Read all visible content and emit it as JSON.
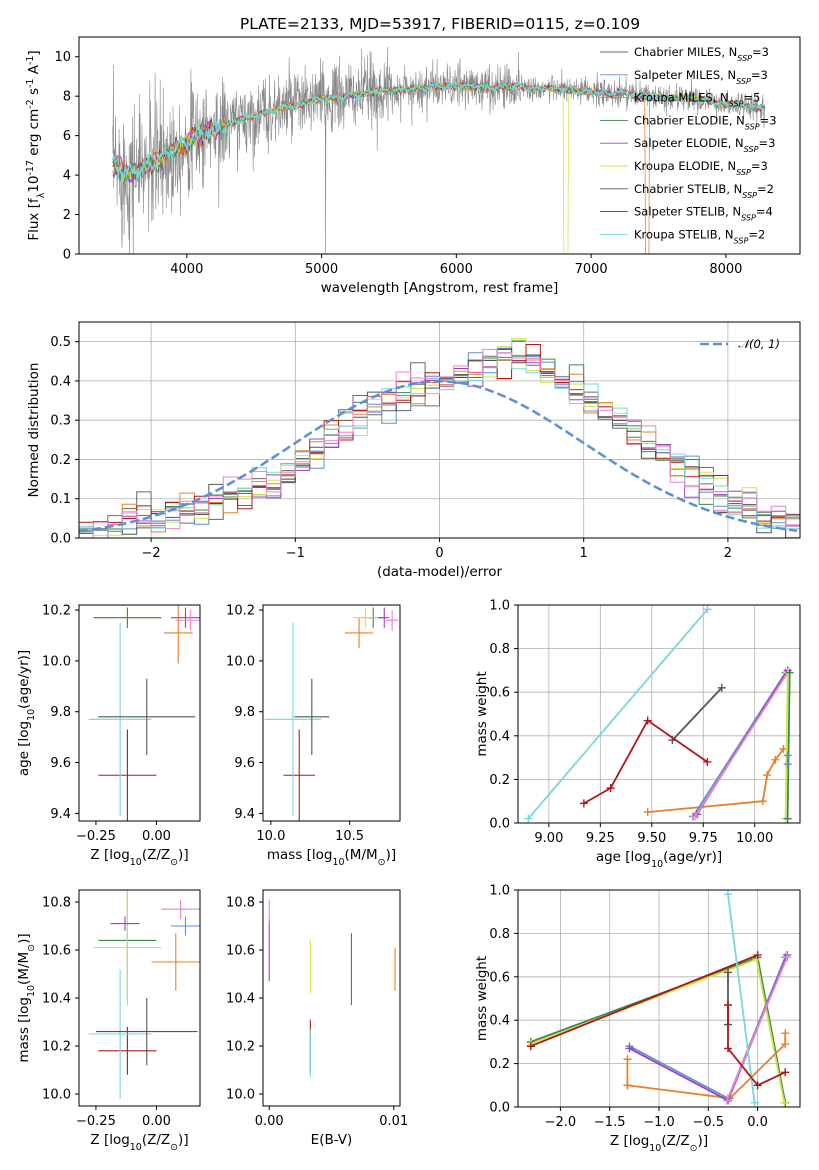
{
  "colors": {
    "Chabrier MILES": "#6a6a6a",
    "Salpeter MILES": "#5b8fd8",
    "Kroupa MILES": "#e8802a",
    "Chabrier ELODIE": "#3a8a4a",
    "Salpeter ELODIE": "#9b40c0",
    "Kroupa ELODIE": "#d6e050",
    "Chabrier STELIB": "#555555",
    "Salpeter STELIB": "#b01818",
    "Kroupa STELIB": "#78d6dc",
    "normal_pdf": "#5b8fd8",
    "pink": "#e884c8",
    "grey_spec": "#8a8a8a"
  },
  "chart_data": [
    {
      "panel": "spectrum",
      "type": "line",
      "title": "PLATE=2133, MJD=53917, FIBERID=0115, z=0.109",
      "xlabel": "wavelength [Angstrom, rest frame]",
      "ylabel": "Flux [f$_\\lambda$10$^{-17}$ erg cm$^{-2}$ s$^{-1}$ A$^{-1}$]",
      "xlim": [
        3200,
        8550
      ],
      "ylim": [
        0,
        11
      ],
      "xticks": [
        "4000",
        "5000",
        "6000",
        "7000",
        "8000"
      ],
      "yticks": [
        "0",
        "2",
        "4",
        "6",
        "8",
        "10"
      ],
      "grid": false,
      "legend_position": "right",
      "legend": [
        {
          "label": "Chabrier MILES, N",
          "sub": "SSP",
          "suffix": "=3",
          "color": "Chabrier MILES"
        },
        {
          "label": "Salpeter MILES, N",
          "sub": "SSP",
          "suffix": "=3",
          "color": "Salpeter MILES"
        },
        {
          "label": "Kroupa MILES, N",
          "sub": "SSP",
          "suffix": "=5",
          "color": "Kroupa MILES"
        },
        {
          "label": "Chabrier ELODIE, N",
          "sub": "SSP",
          "suffix": "=3",
          "color": "Chabrier ELODIE"
        },
        {
          "label": "Salpeter ELODIE, N",
          "sub": "SSP",
          "suffix": "=3",
          "color": "Salpeter ELODIE"
        },
        {
          "label": "Kroupa ELODIE, N",
          "sub": "SSP",
          "suffix": "=3",
          "color": "Kroupa ELODIE"
        },
        {
          "label": "Chabrier STELIB, N",
          "sub": "SSP",
          "suffix": "=2",
          "color": "Chabrier STELIB"
        },
        {
          "label": "Salpeter STELIB, N",
          "sub": "SSP",
          "suffix": "=4",
          "color": "Salpeter STELIB"
        },
        {
          "label": "Kroupa STELIB, N",
          "sub": "SSP",
          "suffix": "=2",
          "color": "Kroupa STELIB"
        }
      ],
      "continuum": [
        [
          3450,
          4.5
        ],
        [
          3550,
          4.1
        ],
        [
          3650,
          4.3
        ],
        [
          3750,
          4.6
        ],
        [
          3850,
          5.0
        ],
        [
          3950,
          5.5
        ],
        [
          4050,
          5.9
        ],
        [
          4150,
          6.2
        ],
        [
          4250,
          6.4
        ],
        [
          4350,
          6.7
        ],
        [
          4450,
          6.9
        ],
        [
          4550,
          7.1
        ],
        [
          4650,
          7.3
        ],
        [
          4750,
          7.5
        ],
        [
          4850,
          7.6
        ],
        [
          4950,
          7.8
        ],
        [
          5050,
          7.9
        ],
        [
          5150,
          7.9
        ],
        [
          5250,
          8.1
        ],
        [
          5350,
          8.2
        ],
        [
          5450,
          8.3
        ],
        [
          5550,
          8.3
        ],
        [
          5650,
          8.4
        ],
        [
          5750,
          8.4
        ],
        [
          5850,
          8.5
        ],
        [
          5950,
          8.5
        ],
        [
          6050,
          8.5
        ],
        [
          6150,
          8.5
        ],
        [
          6250,
          8.4
        ],
        [
          6350,
          8.5
        ],
        [
          6450,
          8.5
        ],
        [
          6550,
          8.4
        ],
        [
          6650,
          8.4
        ],
        [
          6750,
          8.4
        ],
        [
          6850,
          8.3
        ],
        [
          6950,
          8.2
        ],
        [
          7050,
          8.2
        ],
        [
          7150,
          8.1
        ],
        [
          7250,
          8.2
        ],
        [
          7350,
          8.0
        ],
        [
          7450,
          8.0
        ],
        [
          7550,
          7.9
        ],
        [
          7650,
          7.9
        ],
        [
          7750,
          7.9
        ],
        [
          7850,
          7.8
        ],
        [
          7950,
          7.6
        ],
        [
          8050,
          7.6
        ],
        [
          8150,
          7.5
        ],
        [
          8250,
          7.4
        ]
      ]
    },
    {
      "panel": "residual_hist",
      "type": "step",
      "xlabel": "(data-model)/error",
      "ylabel": "Normed distribution",
      "xlim": [
        -2.5,
        2.5
      ],
      "ylim": [
        0,
        0.55
      ],
      "xticks": [
        "−2",
        "−1",
        "0",
        "1",
        "2"
      ],
      "yticks": [
        "0.0",
        "0.1",
        "0.2",
        "0.3",
        "0.4",
        "0.5"
      ],
      "grid": true,
      "legend": "𝒩(0, 1)",
      "bin_edges_start": -2.5,
      "bin_width": 0.1,
      "reference_counts": [
        0.02,
        0.02,
        0.03,
        0.04,
        0.05,
        0.05,
        0.06,
        0.07,
        0.08,
        0.1,
        0.11,
        0.12,
        0.13,
        0.14,
        0.16,
        0.19,
        0.22,
        0.26,
        0.28,
        0.31,
        0.33,
        0.35,
        0.37,
        0.38,
        0.39,
        0.4,
        0.41,
        0.42,
        0.44,
        0.46,
        0.47,
        0.44,
        0.42,
        0.4,
        0.38,
        0.35,
        0.32,
        0.29,
        0.27,
        0.24,
        0.21,
        0.18,
        0.16,
        0.13,
        0.11,
        0.09,
        0.07,
        0.05,
        0.04,
        0.03
      ]
    },
    {
      "panel": "age_vs_Z",
      "type": "errorbar",
      "xlabel": "Z [log$_{10}$(Z/Z$_\\odot$)]",
      "ylabel": "age  [log$_{10}$(age/yr)]",
      "xlim": [
        -0.32,
        0.18
      ],
      "ylim": [
        9.37,
        10.22
      ],
      "xticks": [
        "−0.25",
        "0.00"
      ],
      "yticks": [
        "9.4",
        "9.6",
        "9.8",
        "10.0",
        "10.2"
      ],
      "points": [
        {
          "c": "Salpeter STELIB",
          "x": -0.12,
          "y": 9.55,
          "xe": 0.12,
          "ye": 0.18
        },
        {
          "c": "Kroupa STELIB",
          "x": -0.15,
          "y": 9.77,
          "xe": 0.13,
          "ye": 0.38
        },
        {
          "c": "Chabrier STELIB",
          "x": -0.04,
          "y": 9.78,
          "xe": 0.2,
          "ye": 0.15
        },
        {
          "c": "Kroupa MILES",
          "x": 0.09,
          "y": 10.11,
          "xe": 0.06,
          "ye": 0.12
        },
        {
          "c": "Kroupa ELODIE",
          "x": -0.12,
          "y": 10.17,
          "xe": 0.14,
          "ye": 0.04
        },
        {
          "c": "Chabrier ELODIE",
          "x": -0.12,
          "y": 10.17,
          "xe": 0.14,
          "ye": 0.04
        },
        {
          "c": "Salpeter ELODIE",
          "x": 0.12,
          "y": 10.17,
          "xe": 0.06,
          "ye": 0.04
        },
        {
          "c": "pink",
          "x": 0.14,
          "y": 10.16,
          "xe": 0.06,
          "ye": 0.04
        }
      ]
    },
    {
      "panel": "age_vs_mass",
      "type": "errorbar",
      "xlabel": "mass [log$_{10}$(M/M$_\\odot$)]",
      "ylabel": "",
      "xlim": [
        9.95,
        10.82
      ],
      "ylim": [
        9.37,
        10.22
      ],
      "xticks": [
        "10.0",
        "10.5"
      ],
      "yticks": [
        "9.4",
        "9.6",
        "9.8",
        "10.0",
        "10.2"
      ],
      "points": [
        {
          "c": "Salpeter STELIB",
          "x": 10.18,
          "y": 9.55,
          "xe": 0.1,
          "ye": 0.18
        },
        {
          "c": "Kroupa STELIB",
          "x": 10.14,
          "y": 9.77,
          "xe": 0.18,
          "ye": 0.38
        },
        {
          "c": "Chabrier STELIB",
          "x": 10.26,
          "y": 9.78,
          "xe": 0.11,
          "ye": 0.15
        },
        {
          "c": "Kroupa MILES",
          "x": 10.56,
          "y": 10.11,
          "xe": 0.09,
          "ye": 0.06
        },
        {
          "c": "Chabrier ELODIE",
          "x": 10.65,
          "y": 10.17,
          "xe": 0.06,
          "ye": 0.04
        },
        {
          "c": "Kroupa ELODIE",
          "x": 10.6,
          "y": 10.17,
          "xe": 0.08,
          "ye": 0.04
        },
        {
          "c": "Salpeter ELODIE",
          "x": 10.72,
          "y": 10.17,
          "xe": 0.03,
          "ye": 0.04
        },
        {
          "c": "pink",
          "x": 10.77,
          "y": 10.16,
          "xe": 0.04,
          "ye": 0.04
        }
      ]
    },
    {
      "panel": "mass_weight_vs_age",
      "type": "line",
      "xlabel": "age  [log$_{10}$(age/yr)]",
      "ylabel": "mass weight",
      "xlim": [
        8.85,
        10.22
      ],
      "ylim": [
        0,
        1
      ],
      "xticks": [
        "9.00",
        "9.25",
        "9.50",
        "9.75",
        "10.00"
      ],
      "yticks": [
        "0.0",
        "0.2",
        "0.4",
        "0.6",
        "0.8",
        "1.0"
      ],
      "grid": true,
      "series": [
        {
          "c": "Kroupa STELIB",
          "x": [
            8.9,
            9.77
          ],
          "y": [
            0.02,
            0.98
          ]
        },
        {
          "c": "Chabrier STELIB",
          "x": [
            9.6,
            9.84
          ],
          "y": [
            0.38,
            0.62
          ]
        },
        {
          "c": "Salpeter STELIB",
          "x": [
            9.17,
            9.3,
            9.48,
            9.77
          ],
          "y": [
            0.09,
            0.16,
            0.47,
            0.28
          ]
        },
        {
          "c": "Kroupa MILES",
          "x": [
            9.48,
            10.04,
            10.06,
            10.1,
            10.14
          ],
          "y": [
            0.05,
            0.1,
            0.22,
            0.29,
            0.34
          ]
        },
        {
          "c": "Salpeter MILES",
          "x": [
            9.7,
            10.15
          ],
          "y": [
            0.03,
            0.69
          ]
        },
        {
          "c": "Salpeter ELODIE",
          "x": [
            9.72,
            10.16
          ],
          "y": [
            0.04,
            0.7
          ]
        },
        {
          "c": "pink",
          "x": [
            9.71,
            10.16
          ],
          "y": [
            0.03,
            0.69
          ]
        },
        {
          "c": "Kroupa ELODIE",
          "x": [
            10.15,
            10.16
          ],
          "y": [
            0.02,
            0.69
          ]
        },
        {
          "c": "Chabrier ELODIE",
          "x": [
            10.16,
            10.17
          ],
          "y": [
            0.02,
            0.69
          ]
        },
        {
          "c": "Salpeter MILES",
          "x": [
            10.16,
            10.16
          ],
          "y": [
            0.27,
            0.31
          ]
        }
      ]
    },
    {
      "panel": "mass_vs_Z",
      "type": "errorbar",
      "xlabel": "Z [log$_{10}$(Z/Z$_\\odot$)]",
      "ylabel": "mass [log$_{10}$(M/M$_\\odot$)]",
      "xlim": [
        -0.32,
        0.18
      ],
      "ylim": [
        9.95,
        10.85
      ],
      "xticks": [
        "−0.25",
        "0.00"
      ],
      "yticks": [
        "10.0",
        "10.2",
        "10.4",
        "10.6",
        "10.8"
      ],
      "points": [
        {
          "c": "Salpeter STELIB",
          "x": -0.12,
          "y": 10.18,
          "xe": 0.12,
          "ye": 0.1
        },
        {
          "c": "Kroupa STELIB",
          "x": -0.15,
          "y": 10.25,
          "xe": 0.13,
          "ye": 0.27
        },
        {
          "c": "Chabrier STELIB",
          "x": -0.04,
          "y": 10.26,
          "xe": 0.21,
          "ye": 0.14
        },
        {
          "c": "Kroupa MILES",
          "x": 0.08,
          "y": 10.55,
          "xe": 0.1,
          "ye": 0.12
        },
        {
          "c": "Chabrier ELODIE",
          "x": -0.12,
          "y": 10.64,
          "xe": 0.12,
          "ye": 0.25
        },
        {
          "c": "Kroupa ELODIE",
          "x": -0.12,
          "y": 10.61,
          "xe": 0.14,
          "ye": 0.24
        },
        {
          "c": "Salpeter ELODIE",
          "x": -0.13,
          "y": 10.71,
          "xe": 0.06,
          "ye": 0.03
        },
        {
          "c": "Salpeter MILES",
          "x": 0.12,
          "y": 10.7,
          "xe": 0.06,
          "ye": 0.04
        },
        {
          "c": "pink",
          "x": 0.1,
          "y": 10.77,
          "xe": 0.08,
          "ye": 0.04
        }
      ]
    },
    {
      "panel": "mass_vs_ebv",
      "type": "errorbar",
      "xlabel": "E(B-V)",
      "ylabel": "",
      "xlim": [
        -0.0005,
        0.0105
      ],
      "ylim": [
        9.95,
        10.85
      ],
      "xticks": [
        "0.00",
        "0.01"
      ],
      "yticks": [
        "10.0",
        "10.2",
        "10.4",
        "10.6",
        "10.8"
      ],
      "points": [
        {
          "c": "Salpeter ELODIE",
          "x": 0.0,
          "y": 10.6,
          "xe": 0,
          "ye": 0.13
        },
        {
          "c": "pink",
          "x": 0.0,
          "y": 10.76,
          "xe": 0,
          "ye": 0.05
        },
        {
          "c": "Kroupa ELODIE",
          "x": 0.0033,
          "y": 10.53,
          "xe": 0,
          "ye": 0.11
        },
        {
          "c": "Salpeter STELIB",
          "x": 0.0033,
          "y": 10.2,
          "xe": 0,
          "ye": 0.11
        },
        {
          "c": "Kroupa STELIB",
          "x": 0.0033,
          "y": 10.17,
          "xe": 0,
          "ye": 0.1
        },
        {
          "c": "Chabrier ELODIE",
          "x": 0.0066,
          "y": 10.52,
          "xe": 0,
          "ye": 0.15
        },
        {
          "c": "Kroupa MILES",
          "x": 0.0101,
          "y": 10.52,
          "xe": 0,
          "ye": 0.09
        }
      ]
    },
    {
      "panel": "mass_weight_vs_Z",
      "type": "line",
      "xlabel": "Z [log$_{10}$(Z/Z$_\\odot$)]",
      "ylabel": "mass weight",
      "xlim": [
        -2.43,
        0.43
      ],
      "ylim": [
        0,
        1
      ],
      "xticks": [
        "−2.0",
        "−1.5",
        "−1.0",
        "−0.5",
        "0.0"
      ],
      "yticks": [
        "0.0",
        "0.2",
        "0.4",
        "0.6",
        "0.8",
        "1.0"
      ],
      "grid": true,
      "series": [
        {
          "c": "Chabrier ELODIE",
          "x": [
            -2.3,
            0.0,
            0.28
          ],
          "y": [
            0.3,
            0.69,
            0.02
          ]
        },
        {
          "c": "Kroupa ELODIE",
          "x": [
            -2.3,
            -0.01,
            0.27
          ],
          "y": [
            0.29,
            0.68,
            0.02
          ]
        },
        {
          "c": "Salpeter STELIB",
          "x": [
            -2.3,
            0.0
          ],
          "y": [
            0.28,
            0.7
          ]
        },
        {
          "c": "Kroupa MILES",
          "x": [
            -1.32,
            -0.28,
            0.28,
            0.28
          ],
          "y": [
            0.1,
            0.04,
            0.29,
            0.34
          ]
        },
        {
          "c": "Kroupa MILES",
          "x": [
            -1.32,
            -1.32
          ],
          "y": [
            0.1,
            0.22
          ]
        },
        {
          "c": "Salpeter MILES",
          "x": [
            -1.3,
            -0.3,
            0.28
          ],
          "y": [
            0.28,
            0.04,
            0.69
          ]
        },
        {
          "c": "Salpeter ELODIE",
          "x": [
            -1.3,
            -0.3,
            0.3
          ],
          "y": [
            0.27,
            0.03,
            0.7
          ]
        },
        {
          "c": "pink",
          "x": [
            -0.31,
            0.3
          ],
          "y": [
            0.03,
            0.69
          ]
        },
        {
          "c": "Kroupa STELIB",
          "x": [
            -0.3,
            -0.03
          ],
          "y": [
            0.98,
            0.02
          ]
        },
        {
          "c": "Chabrier STELIB",
          "x": [
            -0.3,
            -0.3
          ],
          "y": [
            0.38,
            0.62
          ]
        },
        {
          "c": "Salpeter STELIB",
          "x": [
            -0.3,
            -0.3,
            0.0,
            0.28
          ],
          "y": [
            0.47,
            0.27,
            0.1,
            0.16
          ]
        }
      ]
    }
  ]
}
